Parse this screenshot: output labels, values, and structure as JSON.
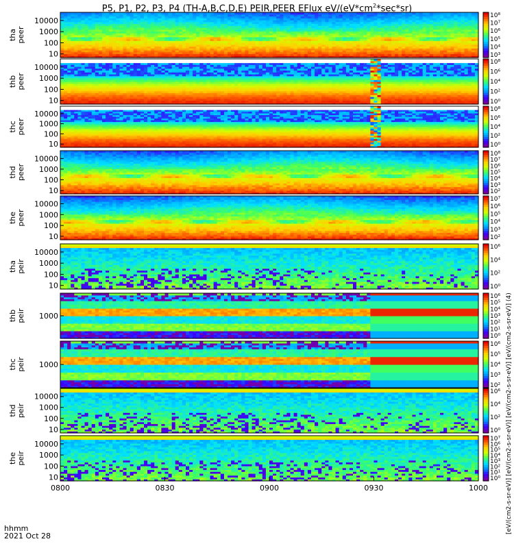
{
  "title": {
    "prefix": "P5, P1, P2, P3, P4 (TH-A,B,C,D,E) PEIR,PEER EFlux eV/(eV*cm",
    "sup": "2",
    "suffix": "*sec*sr)"
  },
  "footer": {
    "label": "hhmm",
    "date": "2021 Oct 28"
  },
  "units_label": "[eV/(cm2-s-sr-eV)] [eV/(cm2-s-sr-eV)] [eV/(cm2-s-sr-eV)] [eV/(cm2-s-sr-eV)] (4)",
  "colors": {
    "scale": [
      "#7a00a0",
      "#3a00ff",
      "#0090ff",
      "#00e0ff",
      "#40ff60",
      "#d0ff00",
      "#ffd000",
      "#ff6000",
      "#e00000"
    ]
  },
  "chart_data": {
    "type": "heatmap",
    "x_tick_labels": [
      "0800",
      "0830",
      "0900",
      "0930",
      "1000"
    ],
    "panels": [
      {
        "name": "tha peer",
        "probe": "tha",
        "species": "peer",
        "y_scale": "log",
        "y_ticks": [
          "10000",
          "1000",
          "100",
          "10"
        ],
        "cbar_ticks": [
          "10⁸",
          "10⁷",
          "10⁶",
          "10⁵",
          "10⁴",
          "10³"
        ],
        "pattern": "peer"
      },
      {
        "name": "thb peer",
        "probe": "thb",
        "species": "peer",
        "y_scale": "log",
        "y_ticks": [
          "10000",
          "1000",
          "100",
          "10"
        ],
        "cbar_ticks": [
          "10⁸",
          "10⁶",
          "10⁴",
          "10²",
          "10⁰"
        ],
        "pattern": "peer_band",
        "gap": [
          0.885,
          0.93
        ]
      },
      {
        "name": "thc peer",
        "probe": "thc",
        "species": "peer",
        "y_scale": "log",
        "y_ticks": [
          "10000",
          "1000",
          "100",
          "10"
        ],
        "cbar_ticks": [
          "10⁸",
          "10⁶",
          "10⁴",
          "10²",
          "10⁰"
        ],
        "pattern": "peer_band",
        "gap": [
          0.885,
          0.93
        ]
      },
      {
        "name": "thd peer",
        "probe": "thd",
        "species": "peer",
        "y_scale": "log",
        "y_ticks": [
          "10000",
          "1000",
          "100",
          "10"
        ],
        "cbar_ticks": [
          "10⁸",
          "10⁷",
          "10⁶",
          "10⁵",
          "10⁴",
          "10³",
          "10²"
        ],
        "pattern": "peer"
      },
      {
        "name": "the peer",
        "probe": "the",
        "species": "peer",
        "y_scale": "log",
        "y_ticks": [
          "10000",
          "1000",
          "100",
          "10"
        ],
        "cbar_ticks": [
          "10⁷",
          "10⁶",
          "10⁵",
          "10⁴",
          "10³",
          "10²"
        ],
        "pattern": "peer"
      },
      {
        "name": "tha peir",
        "probe": "tha",
        "species": "peir",
        "y_scale": "log",
        "y_ticks": [
          "10000",
          "1000",
          "100",
          "10"
        ],
        "cbar_ticks": [
          "10⁶",
          "10⁴",
          "10²",
          "10⁰"
        ],
        "pattern": "peir"
      },
      {
        "name": "thb peir",
        "probe": "thb",
        "species": "peir",
        "y_scale": "log",
        "y_ticks": [
          "1000"
        ],
        "cbar_ticks": [
          "10⁶",
          "10⁵",
          "10⁴",
          "10³",
          "10²",
          "10¹",
          "10⁰"
        ],
        "pattern": "peir_band"
      },
      {
        "name": "thc peir",
        "probe": "thc",
        "species": "peir",
        "y_scale": "log",
        "y_ticks": [
          "1000"
        ],
        "cbar_ticks": [
          "10⁶",
          "10⁵",
          "10⁴",
          "10³",
          "10²"
        ],
        "pattern": "peir_band"
      },
      {
        "name": "thd peir",
        "probe": "thd",
        "species": "peir",
        "y_scale": "log",
        "y_ticks": [
          "10000",
          "1000",
          "100",
          "10"
        ],
        "cbar_ticks": [
          "10⁶",
          "10⁴",
          "10²",
          "10⁰"
        ],
        "pattern": "peir"
      },
      {
        "name": "the peir",
        "probe": "the",
        "species": "peir",
        "y_scale": "log",
        "y_ticks": [
          "10000",
          "1000",
          "100",
          "10"
        ],
        "cbar_ticks": [
          "10⁷",
          "10⁶",
          "10⁵",
          "10⁴",
          "10³",
          "10²",
          "10¹",
          "10⁰"
        ],
        "pattern": "peir"
      }
    ]
  }
}
